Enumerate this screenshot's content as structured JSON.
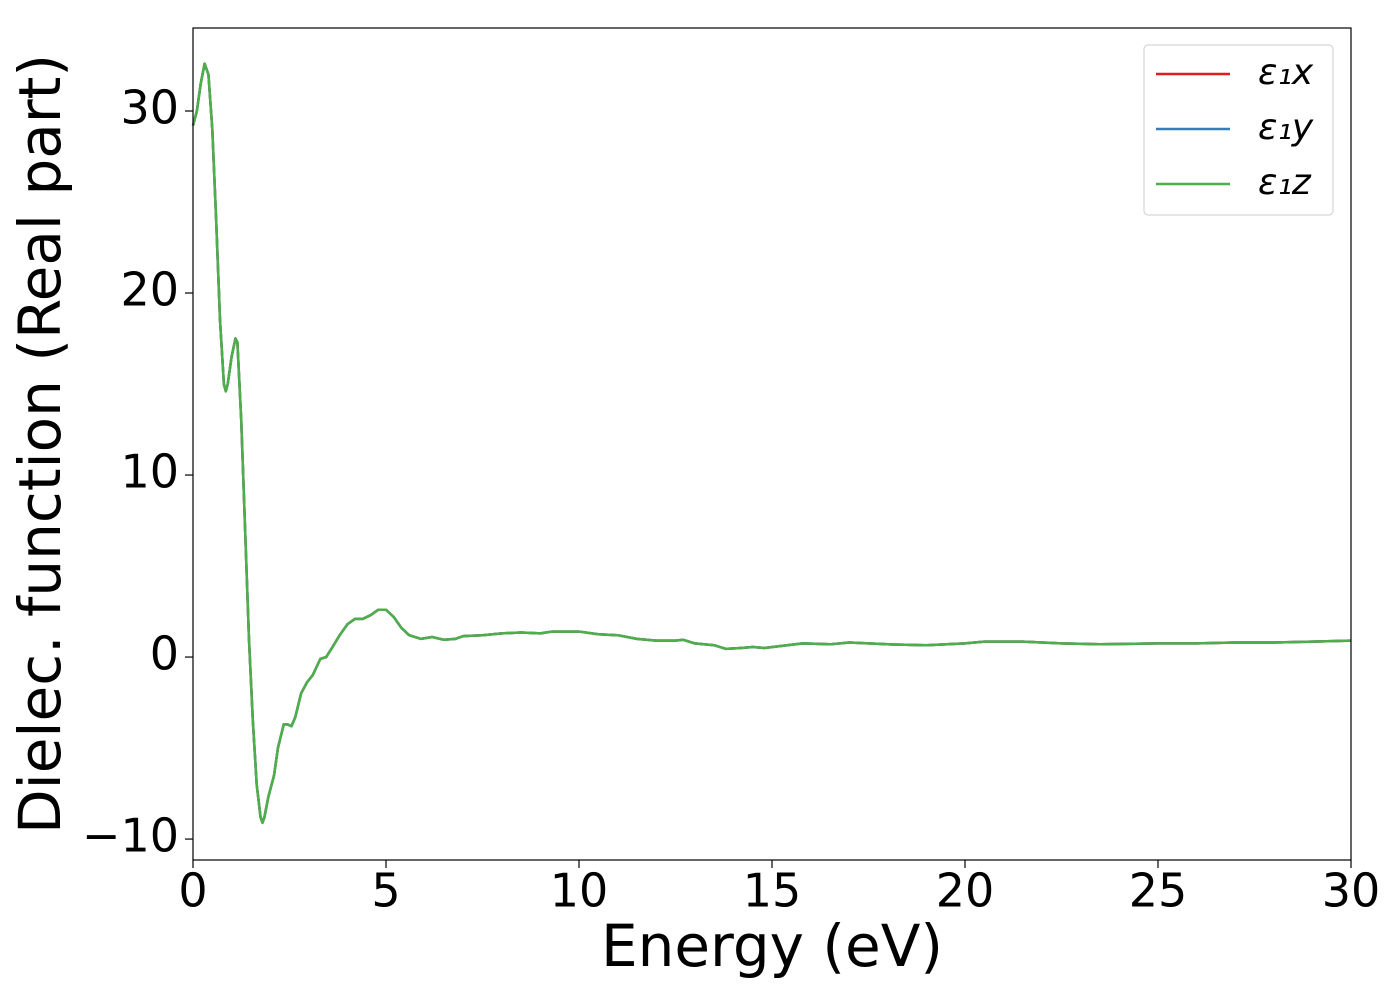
{
  "chart_data": {
    "type": "line",
    "xlabel": "Energy (eV)",
    "ylabel": "Dielec. function (Real part)",
    "x": [
      0,
      0.1,
      0.2,
      0.3,
      0.4,
      0.5,
      0.6,
      0.7,
      0.8,
      0.85,
      0.9,
      1.0,
      1.1,
      1.15,
      1.25,
      1.35,
      1.45,
      1.55,
      1.65,
      1.75,
      1.8,
      1.85,
      1.95,
      2.1,
      2.2,
      2.35,
      2.45,
      2.55,
      2.65,
      2.8,
      2.95,
      3.1,
      3.3,
      3.45,
      3.6,
      3.8,
      4.0,
      4.2,
      4.4,
      4.6,
      4.8,
      5.0,
      5.2,
      5.4,
      5.6,
      5.9,
      6.2,
      6.5,
      6.8,
      7.0,
      7.5,
      8.0,
      8.5,
      9.0,
      9.3,
      10.0,
      10.5,
      11,
      11.5,
      12,
      12.5,
      12.7,
      13,
      13.5,
      13.8,
      14.2,
      14.5,
      14.8,
      15.2,
      15.8,
      16.5,
      17,
      18,
      19,
      20,
      20.5,
      21.5,
      22.5,
      23.5,
      25,
      26,
      27,
      28,
      29,
      30
    ],
    "series": [
      {
        "name": "ε₁x",
        "color": "#e41a1c",
        "values": [
          29.2,
          30,
          31.5,
          32.6,
          32,
          29,
          24,
          18.5,
          15,
          14.6,
          15,
          16.5,
          17.5,
          17.3,
          13,
          7,
          1,
          -3.5,
          -7,
          -8.8,
          -9.1,
          -8.8,
          -7.7,
          -6.5,
          -5,
          -3.7,
          -3.7,
          -3.8,
          -3.3,
          -2,
          -1.4,
          -1,
          -0.1,
          0,
          0.5,
          1.2,
          1.8,
          2.1,
          2.1,
          2.3,
          2.6,
          2.6,
          2.2,
          1.6,
          1.2,
          1.0,
          1.1,
          0.95,
          1.0,
          1.15,
          1.2,
          1.3,
          1.35,
          1.3,
          1.4,
          1.4,
          1.25,
          1.2,
          1.0,
          0.9,
          0.9,
          0.95,
          0.75,
          0.65,
          0.45,
          0.5,
          0.55,
          0.5,
          0.6,
          0.75,
          0.7,
          0.8,
          0.7,
          0.65,
          0.75,
          0.85,
          0.85,
          0.75,
          0.7,
          0.75,
          0.75,
          0.8,
          0.8,
          0.85,
          0.9
        ]
      },
      {
        "name": "ε₁y",
        "color": "#377eb8",
        "values": [
          29.2,
          30,
          31.5,
          32.6,
          32,
          29,
          24,
          18.5,
          15,
          14.6,
          15,
          16.5,
          17.5,
          17.3,
          13,
          7,
          1,
          -3.5,
          -7,
          -8.8,
          -9.1,
          -8.8,
          -7.7,
          -6.5,
          -5,
          -3.7,
          -3.7,
          -3.8,
          -3.3,
          -2,
          -1.4,
          -1,
          -0.1,
          0,
          0.5,
          1.2,
          1.8,
          2.1,
          2.1,
          2.3,
          2.6,
          2.6,
          2.2,
          1.6,
          1.2,
          1.0,
          1.1,
          0.95,
          1.0,
          1.15,
          1.2,
          1.3,
          1.35,
          1.3,
          1.4,
          1.4,
          1.25,
          1.2,
          1.0,
          0.9,
          0.9,
          0.95,
          0.75,
          0.65,
          0.45,
          0.5,
          0.55,
          0.5,
          0.6,
          0.75,
          0.7,
          0.8,
          0.7,
          0.65,
          0.75,
          0.85,
          0.85,
          0.75,
          0.7,
          0.75,
          0.75,
          0.8,
          0.8,
          0.85,
          0.9
        ]
      },
      {
        "name": "ε₁z",
        "color": "#4daf4a",
        "values": [
          29.2,
          30,
          31.5,
          32.6,
          32,
          29,
          24,
          18.5,
          15,
          14.6,
          15,
          16.5,
          17.5,
          17.3,
          13,
          7,
          1,
          -3.5,
          -7,
          -8.8,
          -9.1,
          -8.8,
          -7.7,
          -6.5,
          -5,
          -3.7,
          -3.7,
          -3.8,
          -3.3,
          -2,
          -1.4,
          -1,
          -0.1,
          0,
          0.5,
          1.2,
          1.8,
          2.1,
          2.1,
          2.3,
          2.6,
          2.6,
          2.2,
          1.6,
          1.2,
          1.0,
          1.1,
          0.95,
          1.0,
          1.15,
          1.2,
          1.3,
          1.35,
          1.3,
          1.4,
          1.4,
          1.25,
          1.2,
          1.0,
          0.9,
          0.9,
          0.95,
          0.75,
          0.65,
          0.45,
          0.5,
          0.55,
          0.5,
          0.6,
          0.75,
          0.7,
          0.8,
          0.7,
          0.65,
          0.75,
          0.85,
          0.85,
          0.75,
          0.7,
          0.75,
          0.75,
          0.8,
          0.8,
          0.85,
          0.9
        ]
      }
    ],
    "xlim": [
      0,
      30
    ],
    "xticks": [
      0,
      5,
      10,
      15,
      20,
      25,
      30
    ],
    "ylim": [
      -11.15,
      34.56
    ],
    "yticks": [
      {
        "value": -10,
        "label": "−10"
      },
      0,
      10,
      20,
      30
    ],
    "legend": "upper right",
    "grid": false
  }
}
